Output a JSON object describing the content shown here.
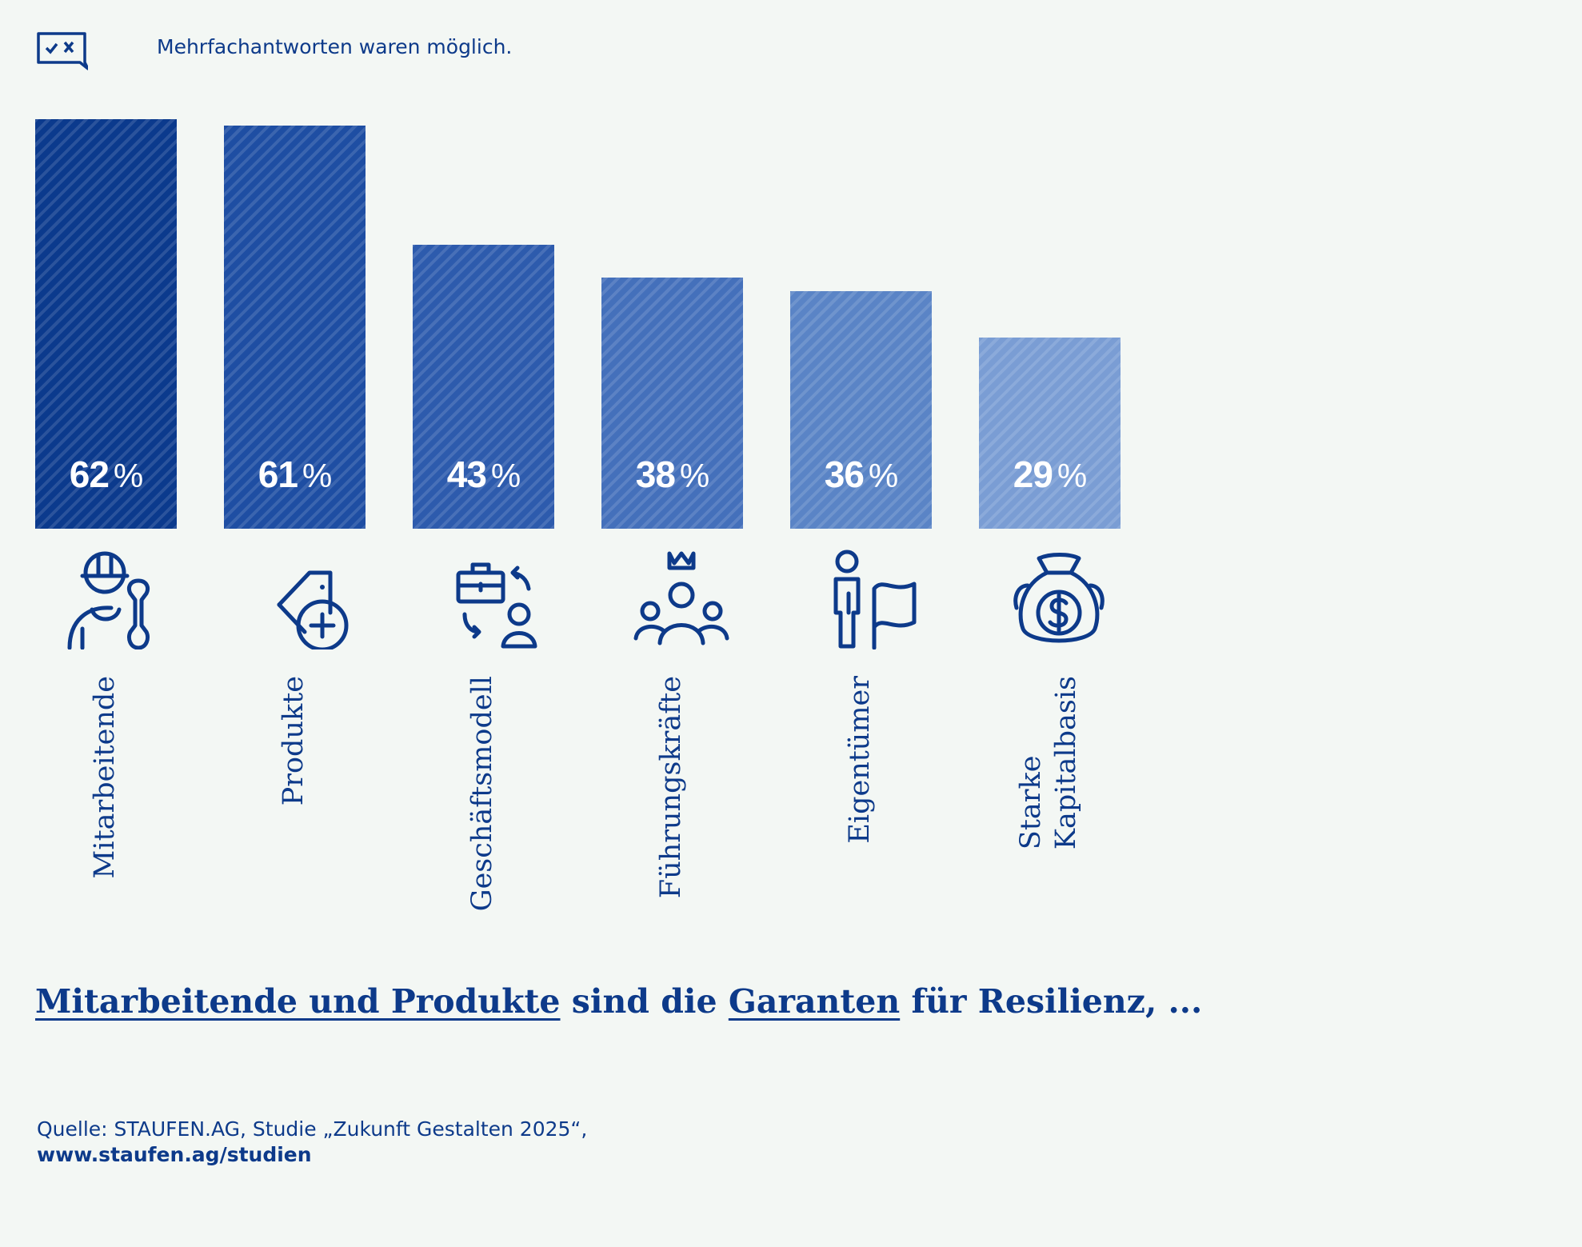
{
  "note": {
    "icon": "checkbox-speech-bubble-icon",
    "text": "Mehrfachantworten waren möglich."
  },
  "colors": {
    "text": "#0d3a8a",
    "background": "#f3f7f4"
  },
  "chart_data": {
    "type": "bar",
    "categories": [
      "Mitarbeitende",
      "Produkte",
      "Geschäftsmodell",
      "Führungskräfte",
      "Eigentümer",
      "Starke\nKapitalbasis"
    ],
    "values": [
      62,
      61,
      43,
      38,
      36,
      29
    ],
    "value_labels": [
      "62",
      "61",
      "43",
      "38",
      "36",
      "29"
    ],
    "unit": "%",
    "ylim": [
      0,
      62
    ],
    "colors": [
      "#0b3a8d",
      "#1e4ea3",
      "#2d5bad",
      "#4470bb",
      "#5a84c6",
      "#7a9dd4"
    ],
    "icons": [
      "worker-wrench-icon",
      "price-tag-plus-icon",
      "briefcase-person-swap-icon",
      "leader-crown-team-icon",
      "owner-flag-icon",
      "money-bag-icon"
    ],
    "title": "",
    "xlabel": "",
    "ylabel": "",
    "grid": false
  },
  "headline": {
    "part1": "Mitarbeitende und Produkte",
    "part2": " sind die ",
    "part3": "Garanten",
    "part4": " für Resilienz, ..."
  },
  "source": {
    "line1": "Quelle: STAUFEN.AG, Studie „Zukunft Gestalten 2025“,",
    "line2": "www.staufen.ag/studien"
  }
}
